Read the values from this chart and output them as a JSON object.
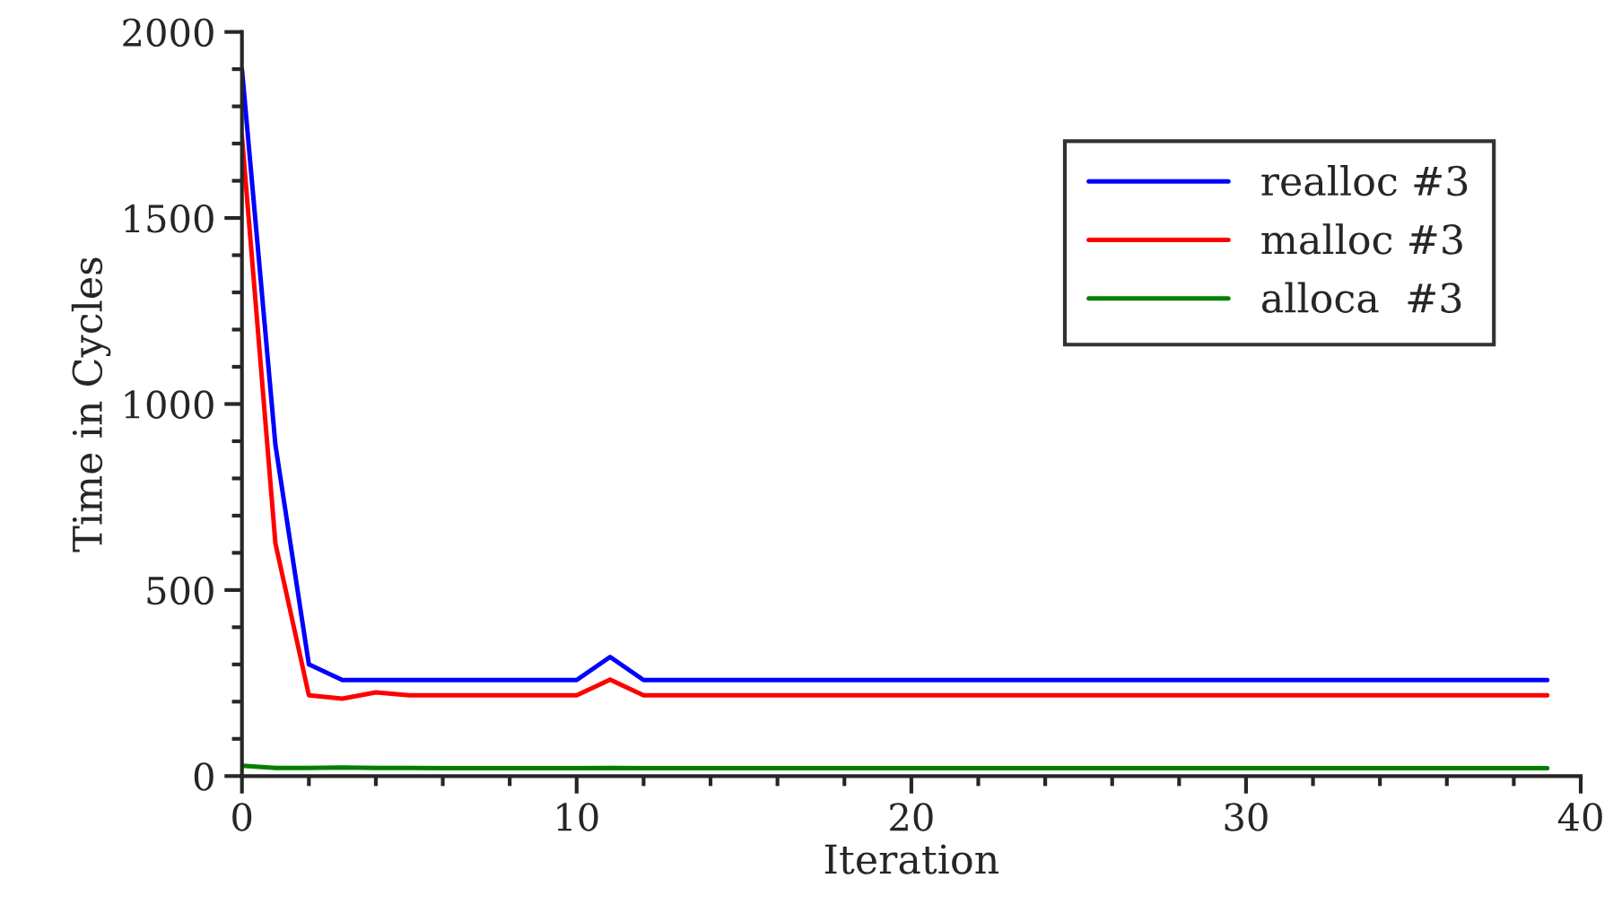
{
  "chart_data": {
    "type": "line",
    "xlabel": "Iteration",
    "ylabel": "Time in Cycles",
    "x": [
      0,
      1,
      2,
      3,
      4,
      5,
      6,
      7,
      8,
      9,
      10,
      11,
      12,
      13,
      14,
      15,
      16,
      17,
      18,
      19,
      20,
      21,
      22,
      23,
      24,
      25,
      26,
      27,
      28,
      29,
      30,
      31,
      32,
      33,
      34,
      35,
      36,
      37,
      38,
      39
    ],
    "series": [
      {
        "name": "realloc #3",
        "color": "#0000ff",
        "values": [
          1900,
          890,
          300,
          258,
          258,
          258,
          258,
          258,
          258,
          258,
          258,
          320,
          258,
          258,
          258,
          258,
          258,
          258,
          258,
          258,
          258,
          258,
          258,
          258,
          258,
          258,
          258,
          258,
          258,
          258,
          258,
          258,
          258,
          258,
          258,
          258,
          258,
          258,
          258,
          258
        ]
      },
      {
        "name": "malloc #3",
        "color": "#ff0000",
        "values": [
          1720,
          625,
          217,
          208,
          225,
          217,
          217,
          217,
          217,
          217,
          217,
          259,
          217,
          217,
          217,
          217,
          217,
          217,
          217,
          217,
          217,
          217,
          217,
          217,
          217,
          217,
          217,
          217,
          217,
          217,
          217,
          217,
          217,
          217,
          217,
          217,
          217,
          217,
          217,
          217
        ]
      },
      {
        "name": "alloca  #3",
        "color": "#008000",
        "values": [
          28,
          22,
          22,
          23,
          22,
          22,
          21,
          21,
          21,
          21,
          21,
          22,
          21,
          21,
          21,
          21,
          21,
          21,
          21,
          21,
          21,
          21,
          21,
          21,
          21,
          21,
          21,
          21,
          21,
          21,
          21,
          21,
          21,
          21,
          21,
          21,
          21,
          21,
          21,
          21
        ]
      }
    ],
    "xlim": [
      0,
      40
    ],
    "xticks": [
      0,
      10,
      20,
      30,
      40
    ],
    "ylim": [
      0,
      2000
    ],
    "yticks": [
      0,
      500,
      1000,
      1500,
      2000
    ],
    "grid": false,
    "legend": "top right",
    "line_style": "solid",
    "marker": "none"
  }
}
